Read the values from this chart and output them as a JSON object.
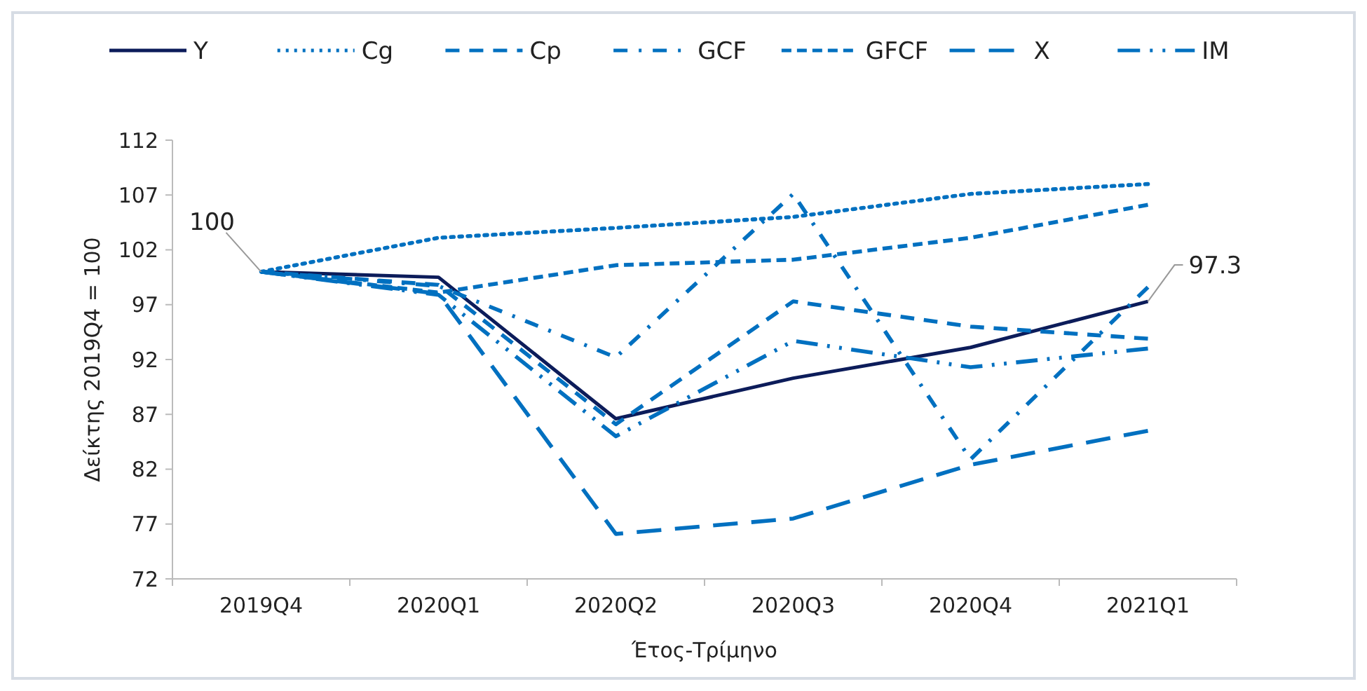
{
  "chart_data": {
    "type": "line",
    "xlabel": "Έτος-Τρίμηνο",
    "ylabel": "Δείκτης 2019Q4 = 100",
    "categories": [
      "2019Q4",
      "2020Q1",
      "2020Q2",
      "2020Q3",
      "2020Q4",
      "2021Q1"
    ],
    "series": [
      {
        "name": "Y",
        "color": "#0c1c5a",
        "line_style": "solid",
        "values": [
          100,
          99.5,
          86.6,
          90.3,
          93.1,
          97.3
        ]
      },
      {
        "name": "Cg",
        "color": "#0070c0",
        "line_style": "dotted",
        "values": [
          100,
          103.1,
          104.0,
          105.0,
          107.1,
          108.0
        ]
      },
      {
        "name": "Cp",
        "color": "#0070c0",
        "line_style": "dashed",
        "values": [
          100,
          98.8,
          86.1,
          97.3,
          95.0,
          93.9
        ]
      },
      {
        "name": "GCF",
        "color": "#0070c0",
        "line_style": "dashdot",
        "values": [
          100,
          98.7,
          92.2,
          107.1,
          82.9,
          98.6
        ]
      },
      {
        "name": "GFCF",
        "color": "#0070c0",
        "line_style": "shortdash",
        "values": [
          100,
          98.1,
          100.6,
          101.1,
          103.1,
          106.1
        ]
      },
      {
        "name": "X",
        "color": "#0070c0",
        "line_style": "longdash",
        "values": [
          100,
          98.0,
          76.1,
          77.5,
          82.4,
          85.5
        ]
      },
      {
        "name": "IM",
        "color": "#0070c0",
        "line_style": "longdashdotdot",
        "values": [
          100,
          97.9,
          85.0,
          93.7,
          91.3,
          93.0
        ]
      }
    ],
    "ylim": [
      72,
      112
    ],
    "yticks": [
      72,
      77,
      82,
      87,
      92,
      97,
      102,
      107,
      112
    ],
    "grid": false,
    "legend": "top",
    "annotations": [
      {
        "text": "100",
        "x": "2019Q4",
        "y": 100
      },
      {
        "text": "97.3",
        "x": "2021Q1",
        "y": 97.3
      }
    ]
  }
}
